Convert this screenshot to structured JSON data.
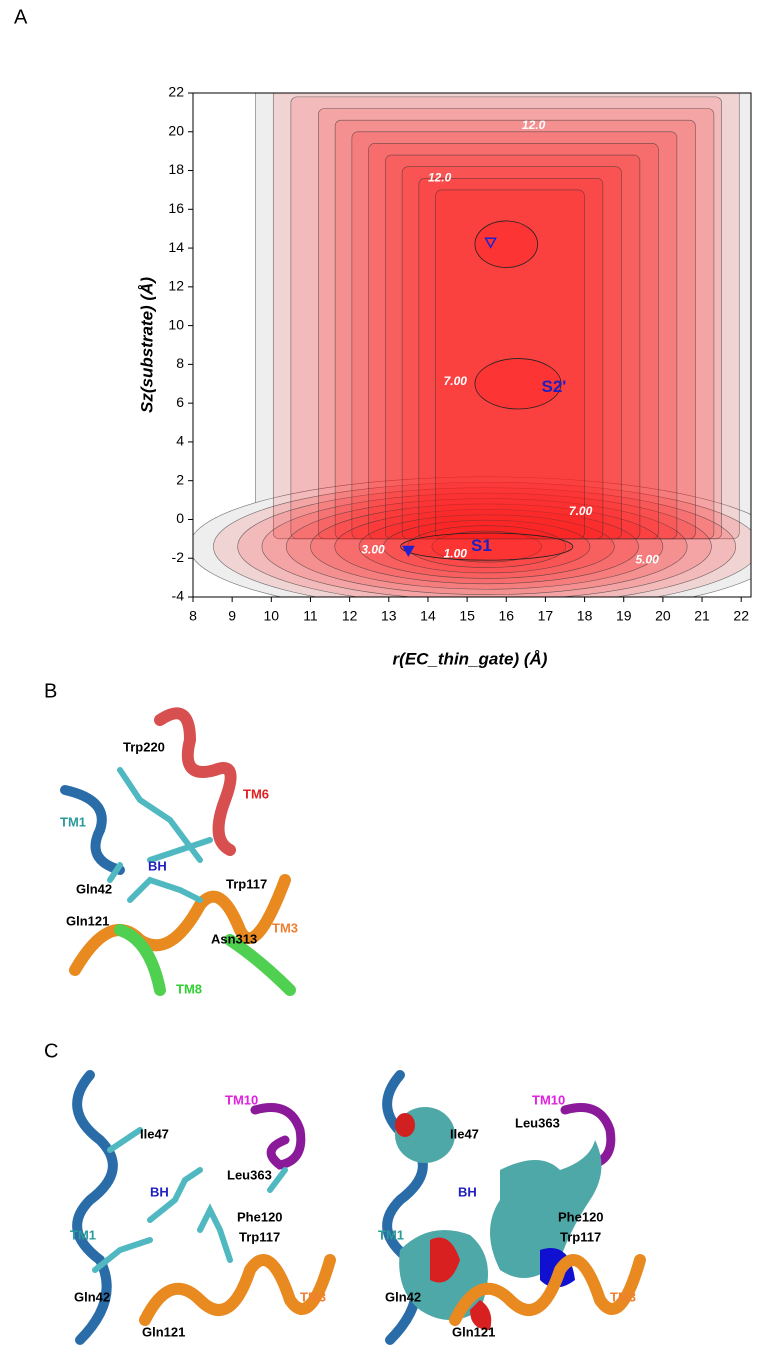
{
  "figure_labels": [
    "A",
    "B",
    "C"
  ],
  "chart_data": {
    "type": "contour",
    "xlabel": "r(EC_thin_gate) (Å)",
    "ylabel": "Sz(substrate) (Å)",
    "xlim": [
      8,
      22.25
    ],
    "ylim": [
      -4,
      22
    ],
    "xticks": [
      8,
      9,
      10,
      11,
      12,
      13,
      14,
      15,
      16,
      17,
      18,
      19,
      20,
      21,
      22
    ],
    "yticks": [
      -4,
      -2,
      0,
      2,
      4,
      6,
      8,
      10,
      12,
      14,
      16,
      18,
      20,
      22
    ],
    "color": "#ff2020",
    "annotations": [
      "12.0",
      "12.0",
      "7.00",
      "S2'",
      "7.00",
      "3.00",
      "1.00",
      "S1",
      "5.00"
    ],
    "minima": {
      "x": [
        15.6,
        13.5
      ],
      "y": [
        14.3,
        -1.6
      ],
      "color": "#2020d0"
    }
  },
  "panel_b": {
    "labels": [
      "Trp220",
      "TM6",
      "TM1",
      "BH",
      "Gln42",
      "Trp117",
      "Gln121",
      "TM3",
      "Asn313",
      "TM8"
    ]
  },
  "panel_c_left": {
    "labels": [
      "Ile47",
      "TM10",
      "BH",
      "Leu363",
      "TM1",
      "Phe120",
      "Trp117",
      "Gln42",
      "TM3",
      "Gln121"
    ]
  },
  "panel_c_right": {
    "labels": [
      "Ile47",
      "TM10",
      "Leu363",
      "BH",
      "TM1",
      "Phe120",
      "Trp117",
      "Gln42",
      "TM3",
      "Gln121"
    ]
  }
}
